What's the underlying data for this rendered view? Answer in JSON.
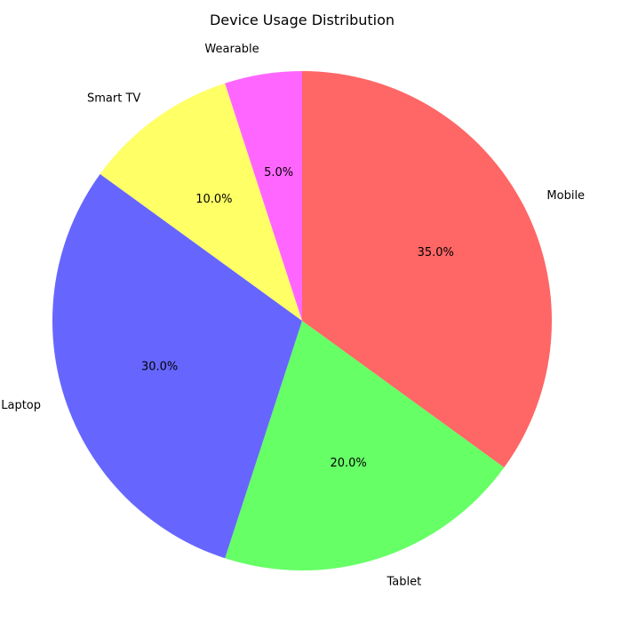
{
  "chart_data": {
    "type": "pie",
    "title": "Device Usage Distribution",
    "start_angle_deg": 90,
    "direction": "clockwise",
    "slices": [
      {
        "label": "Mobile",
        "value": 35.0,
        "pct_label": "35.0%",
        "color": "#ff6666"
      },
      {
        "label": "Tablet",
        "value": 20.0,
        "pct_label": "20.0%",
        "color": "#66ff66"
      },
      {
        "label": "Laptop",
        "value": 30.0,
        "pct_label": "30.0%",
        "color": "#6666ff"
      },
      {
        "label": "Smart TV",
        "value": 10.0,
        "pct_label": "10.0%",
        "color": "#ffff66"
      },
      {
        "label": "Wearable",
        "value": 5.0,
        "pct_label": "5.0%",
        "color": "#ff66ff"
      }
    ]
  }
}
